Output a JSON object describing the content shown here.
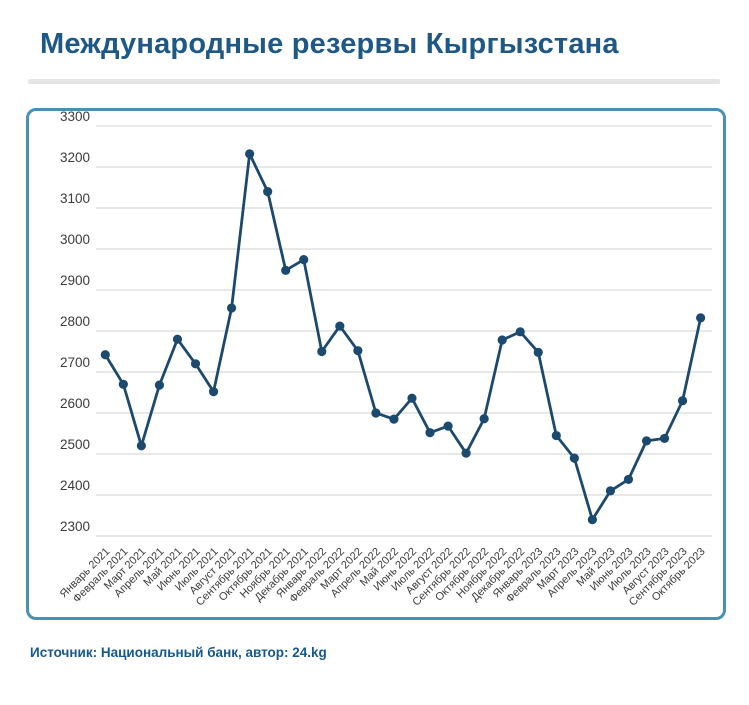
{
  "header": {
    "title": "Международные резервы Кыргызстана"
  },
  "footer": {
    "source": "Источник: Национальный банк, автор: 24.kg"
  },
  "colors": {
    "title_text": "#1d5886",
    "source_text": "#14588c",
    "card_border": "#4791b3",
    "series_line": "#1c4a6e",
    "gridline": "#d9d9d9",
    "axis_text": "#3c3c3c",
    "divider": "#e5e5e5",
    "background": "#ffffff"
  },
  "chart_data": {
    "type": "line",
    "title": "Международные резервы Кыргызстана",
    "x": [
      "Январь 2021",
      "Февраль 2021",
      "Март 2021",
      "Апрель 2021",
      "Май 2021",
      "Июнь 2021",
      "Июль 2021",
      "Август 2021",
      "Сентябрь 2021",
      "Октябрь 2021",
      "Ноябрь 2021",
      "Декабрь 2021",
      "Январь 2022",
      "Февраль 2022",
      "Март 2022",
      "Апрель 2022",
      "Май 2022",
      "Июнь 2022",
      "Июль 2022",
      "Август 2022",
      "Сентябрь 2022",
      "Октябрь 2022",
      "Ноябрь 2022",
      "Декабрь 2022",
      "Январь 2023",
      "Февраль 2023",
      "Март 2023",
      "Апрель 2023",
      "Май 2023",
      "Июнь 2023",
      "Июль 2023",
      "Август 2023",
      "Сентябрь 2023",
      "Октябрь 2023"
    ],
    "values": [
      2742,
      2670,
      2520,
      2668,
      2780,
      2720,
      2652,
      2856,
      3232,
      3140,
      2948,
      2974,
      2750,
      2812,
      2752,
      2600,
      2585,
      2636,
      2552,
      2568,
      2502,
      2586,
      2778,
      2798,
      2748,
      2545,
      2490,
      2340,
      2410,
      2438,
      2532,
      2538,
      2630,
      2832
    ],
    "xlabel": "",
    "ylabel": "",
    "ylim": [
      2300,
      3300
    ],
    "ytick_step": 100,
    "grid": true,
    "legend_position": "none",
    "marker": "circle",
    "x_label_rotation": -45
  }
}
